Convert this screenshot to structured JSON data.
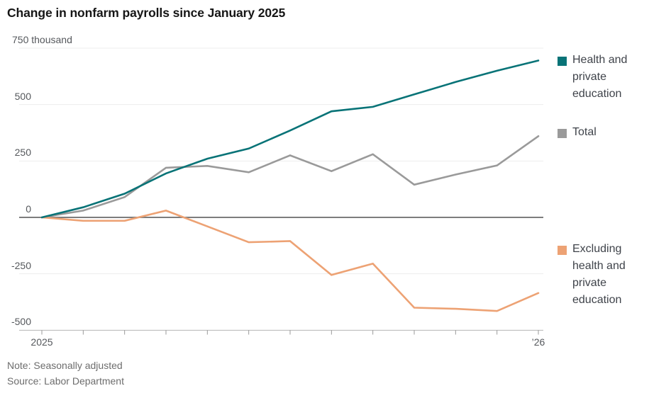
{
  "title": "Change in nonfarm payrolls since January 2025",
  "note": "Note: Seasonally adjusted",
  "source": "Source: Labor Department",
  "chart_data": {
    "type": "line",
    "unit": "thousand",
    "x_unit": "months since January 2025",
    "x": [
      0,
      1,
      2,
      3,
      4,
      5,
      6,
      7,
      8,
      9,
      10,
      11,
      12
    ],
    "x_axis_labels": [
      {
        "position": 0,
        "label": "2025"
      },
      {
        "position": 12,
        "label": "’26"
      }
    ],
    "ylim": [
      -500,
      750
    ],
    "y_ticks": [
      {
        "value": 750,
        "label": "750 thousand"
      },
      {
        "value": 500,
        "label": "500"
      },
      {
        "value": 250,
        "label": "250"
      },
      {
        "value": 0,
        "label": "0"
      },
      {
        "value": -250,
        "label": "-250"
      },
      {
        "value": -500,
        "label": "-500"
      }
    ],
    "grid": "horizontal",
    "legend_position": "right",
    "series": [
      {
        "name": "Health and private education",
        "color": "#087377",
        "values": [
          0,
          45,
          105,
          195,
          260,
          305,
          385,
          470,
          490,
          545,
          600,
          650,
          695
        ]
      },
      {
        "name": "Total",
        "color": "#9a9a9a",
        "values": [
          0,
          30,
          90,
          220,
          228,
          200,
          275,
          205,
          280,
          145,
          190,
          230,
          360
        ]
      },
      {
        "name": "Excluding health and private education",
        "color": "#eda274",
        "values": [
          0,
          -15,
          -15,
          30,
          -40,
          -110,
          -105,
          -255,
          -205,
          -400,
          -405,
          -415,
          -335
        ]
      }
    ]
  },
  "legend": [
    {
      "swatch_color": "#087377",
      "lines": [
        "Health and",
        "private",
        "education"
      ]
    },
    {
      "swatch_color": "#9a9a9a",
      "lines": [
        "Total"
      ]
    },
    {
      "swatch_color": "#eda274",
      "lines": [
        "Excluding",
        "health and",
        "private",
        "education"
      ]
    }
  ],
  "colors": {
    "zero_line": "#7d7d7d",
    "gridline": "#ededed",
    "axis_baseline": "#b5b5b5",
    "tick": "#999999"
  }
}
